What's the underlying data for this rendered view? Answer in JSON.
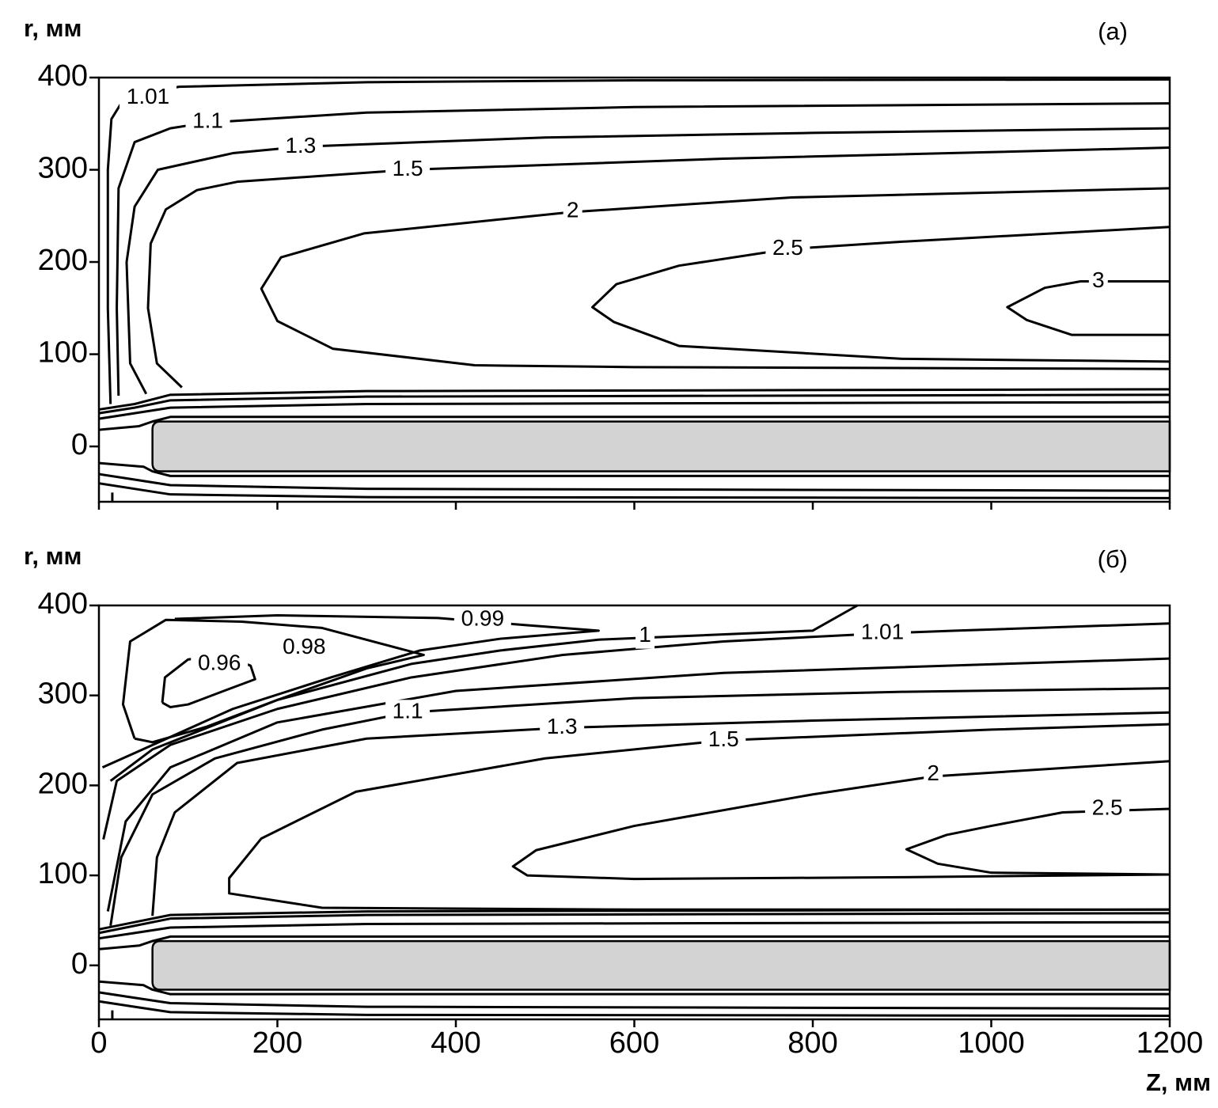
{
  "chart_data": [
    {
      "type": "contour",
      "panel_label": "(a)",
      "ylabel": "r, мм",
      "xlim": [
        0,
        1200
      ],
      "ylim": [
        -60,
        400
      ],
      "xticks": [
        0,
        200,
        400,
        600,
        800,
        1000,
        1200
      ],
      "yticks": [
        0,
        100,
        200,
        300,
        400
      ],
      "xtick_labels": false,
      "line_color": "#000000",
      "rod": {
        "x": [
          60,
          1200
        ],
        "y": [
          -27,
          27
        ],
        "color": "#d3d3d3"
      },
      "contours": [
        {
          "level": 1.01,
          "x": [
            13,
            10,
            10,
            14,
            30,
            90,
            300,
            600,
            1200
          ],
          "y": [
            46,
            150,
            300,
            355,
            380,
            390,
            395,
            397,
            398
          ],
          "label_at": [
            55,
            378
          ]
        },
        {
          "level": 1.1,
          "x": [
            22,
            20,
            22,
            40,
            80,
            120,
            300,
            600,
            1200
          ],
          "y": [
            55,
            150,
            280,
            330,
            345,
            351,
            362,
            368,
            372
          ],
          "label_at": [
            122,
            352
          ]
        },
        {
          "level": 1.3,
          "x": [
            53,
            35,
            31,
            40,
            66,
            150,
            226,
            500,
            800,
            1200
          ],
          "y": [
            57,
            90,
            200,
            260,
            300,
            318,
            325,
            335,
            340,
            345
          ],
          "label_at": [
            226,
            325
          ]
        },
        {
          "level": 1.5,
          "x": [
            93,
            65,
            55,
            58,
            75,
            110,
            155,
            346,
            700,
            1200
          ],
          "y": [
            64,
            90,
            150,
            220,
            257,
            278,
            287,
            300,
            312,
            324
          ],
          "label_at": [
            346,
            300
          ]
        },
        {
          "level": 2,
          "x": [
            1200,
            600,
            421,
            262,
            200,
            182,
            204,
            297,
            528,
            776,
            1200
          ],
          "y": [
            84,
            86,
            88,
            106,
            136,
            171,
            205,
            231,
            254,
            270,
            280
          ],
          "label_at": [
            531,
            255
          ]
        },
        {
          "level": 2.5,
          "x": [
            1200,
            900,
            650,
            577,
            553,
            580,
            650,
            772,
            900,
            1200
          ],
          "y": [
            92,
            95,
            109,
            135,
            151,
            176,
            196,
            214,
            222,
            238
          ],
          "label_at": [
            772,
            214
          ]
        },
        {
          "level": 3,
          "x": [
            1200,
            1090,
            1040,
            1018,
            1060,
            1100,
            1200
          ],
          "y": [
            121,
            121,
            137,
            151,
            172,
            179,
            179
          ],
          "label_at": [
            1120,
            179
          ]
        },
        {
          "x": [
            0,
            40,
            80,
            300,
            1200
          ],
          "y": [
            40,
            46,
            56,
            60,
            62
          ]
        },
        {
          "x": [
            0,
            40,
            80,
            300,
            1200
          ],
          "y": [
            36,
            42,
            50,
            54,
            56
          ]
        },
        {
          "x": [
            0,
            40,
            80,
            300,
            1200
          ],
          "y": [
            30,
            36,
            42,
            46,
            48
          ]
        },
        {
          "x": [
            0,
            45,
            60,
            80,
            1200
          ],
          "y": [
            18,
            22,
            27,
            32,
            32
          ]
        },
        {
          "x": [
            0,
            50,
            60,
            80,
            1200
          ],
          "y": [
            -18,
            -22,
            -27,
            -32,
            -32
          ]
        },
        {
          "x": [
            0,
            40,
            80,
            300,
            1200
          ],
          "y": [
            -30,
            -36,
            -42,
            -46,
            -48
          ]
        },
        {
          "x": [
            0,
            40,
            80,
            300,
            1200
          ],
          "y": [
            -40,
            -46,
            -52,
            -55,
            -56
          ]
        },
        {
          "x": [
            15,
            15
          ],
          "y": [
            -50,
            -60
          ]
        }
      ]
    },
    {
      "type": "contour",
      "panel_label": "(б)",
      "ylabel": "r, мм",
      "xlabel": "Z, мм",
      "xlim": [
        0,
        1200
      ],
      "ylim": [
        -60,
        400
      ],
      "xticks": [
        0,
        200,
        400,
        600,
        800,
        1000,
        1200
      ],
      "yticks": [
        0,
        100,
        200,
        300,
        400
      ],
      "xtick_labels": true,
      "line_color": "#000000",
      "rod": {
        "x": [
          60,
          1200
        ],
        "y": [
          -27,
          27
        ],
        "color": "#d3d3d3"
      },
      "contours": [
        {
          "level": 0.96,
          "x": [
            71,
            74,
            100,
            140,
            170,
            175,
            140,
            100,
            80,
            71
          ],
          "y": [
            292,
            320,
            340,
            345,
            333,
            318,
            305,
            290,
            287,
            292
          ],
          "label_at": [
            135,
            335
          ]
        },
        {
          "level": 0.98,
          "x": [
            40,
            27,
            35,
            75,
            160,
            250,
            364,
            300,
            200,
            120,
            60,
            40
          ],
          "y": [
            252,
            290,
            360,
            384,
            382,
            375,
            345,
            330,
            295,
            265,
            248,
            252
          ],
          "label_at": [
            230,
            353
          ]
        },
        {
          "level": 0.99,
          "x": [
            4,
            40,
            150,
            260,
            360,
            450,
            560,
            480,
            380,
            200,
            85
          ],
          "y": [
            220,
            236,
            285,
            320,
            350,
            363,
            372,
            378,
            386,
            389,
            385
          ],
          "label_at": [
            430,
            384
          ]
        },
        {
          "level": 1,
          "x": [
            13,
            60,
            200,
            350,
            450,
            560,
            800,
            850
          ],
          "y": [
            205,
            240,
            295,
            335,
            350,
            362,
            372,
            400
          ],
          "label_at": [
            612,
            366
          ]
        },
        {
          "level": 1.01,
          "x": [
            5,
            20,
            80,
            200,
            350,
            520,
            700,
            878,
            960,
            1200
          ],
          "y": [
            140,
            205,
            245,
            285,
            320,
            345,
            360,
            369,
            372,
            380
          ],
          "label_at": [
            878,
            369
          ]
        },
        {
          "x": [
            10,
            30,
            80,
            200,
            400,
            700,
            1200
          ],
          "y": [
            60,
            160,
            220,
            270,
            305,
            325,
            341
          ]
        },
        {
          "level": 1.1,
          "x": [
            13,
            25,
            60,
            130,
            250,
            346,
            600,
            900,
            1200
          ],
          "y": [
            44,
            120,
            190,
            230,
            262,
            281,
            297,
            304,
            308
          ],
          "label_at": [
            346,
            281
          ]
        },
        {
          "level": 1.3,
          "x": [
            60,
            65,
            85,
            155,
            300,
            519,
            800,
            1200
          ],
          "y": [
            55,
            120,
            170,
            225,
            252,
            264,
            272,
            281
          ],
          "label_at": [
            519,
            264
          ]
        },
        {
          "level": 1.5,
          "x": [
            1200,
            600,
            250,
            146,
            146,
            182,
            288,
            500,
            700,
            1000,
            1200
          ],
          "y": [
            62,
            62,
            64,
            80,
            97,
            141,
            193,
            230,
            250,
            262,
            268
          ],
          "label_at": [
            700,
            250
          ]
        },
        {
          "level": 2,
          "x": [
            1200,
            900,
            600,
            480,
            464,
            490,
            600,
            800,
            935,
            1200
          ],
          "y": [
            101,
            98,
            96,
            100,
            110,
            128,
            155,
            190,
            210,
            227
          ],
          "label_at": [
            935,
            212
          ]
        },
        {
          "level": 2.5,
          "x": [
            1200,
            1000,
            940,
            905,
            950,
            1000,
            1080,
            1200
          ],
          "y": [
            101,
            103,
            113,
            129,
            145,
            155,
            170,
            174
          ],
          "label_at": [
            1130,
            174
          ]
        },
        {
          "x": [
            0,
            40,
            80,
            300,
            1200
          ],
          "y": [
            40,
            48,
            56,
            60,
            62
          ]
        },
        {
          "x": [
            0,
            40,
            80,
            300,
            1200
          ],
          "y": [
            36,
            44,
            52,
            56,
            58
          ]
        },
        {
          "x": [
            0,
            40,
            80,
            300,
            1200
          ],
          "y": [
            30,
            36,
            42,
            46,
            48
          ]
        },
        {
          "x": [
            0,
            45,
            60,
            80,
            1200
          ],
          "y": [
            18,
            22,
            27,
            32,
            32
          ]
        },
        {
          "x": [
            0,
            50,
            60,
            80,
            1200
          ],
          "y": [
            -18,
            -22,
            -27,
            -32,
            -32
          ]
        },
        {
          "x": [
            0,
            40,
            80,
            300,
            1200
          ],
          "y": [
            -30,
            -36,
            -42,
            -46,
            -48
          ]
        },
        {
          "x": [
            0,
            40,
            80,
            300,
            1200
          ],
          "y": [
            -40,
            -46,
            -52,
            -55,
            -56
          ]
        },
        {
          "x": [
            15,
            15
          ],
          "y": [
            -50,
            -60
          ]
        }
      ]
    }
  ]
}
